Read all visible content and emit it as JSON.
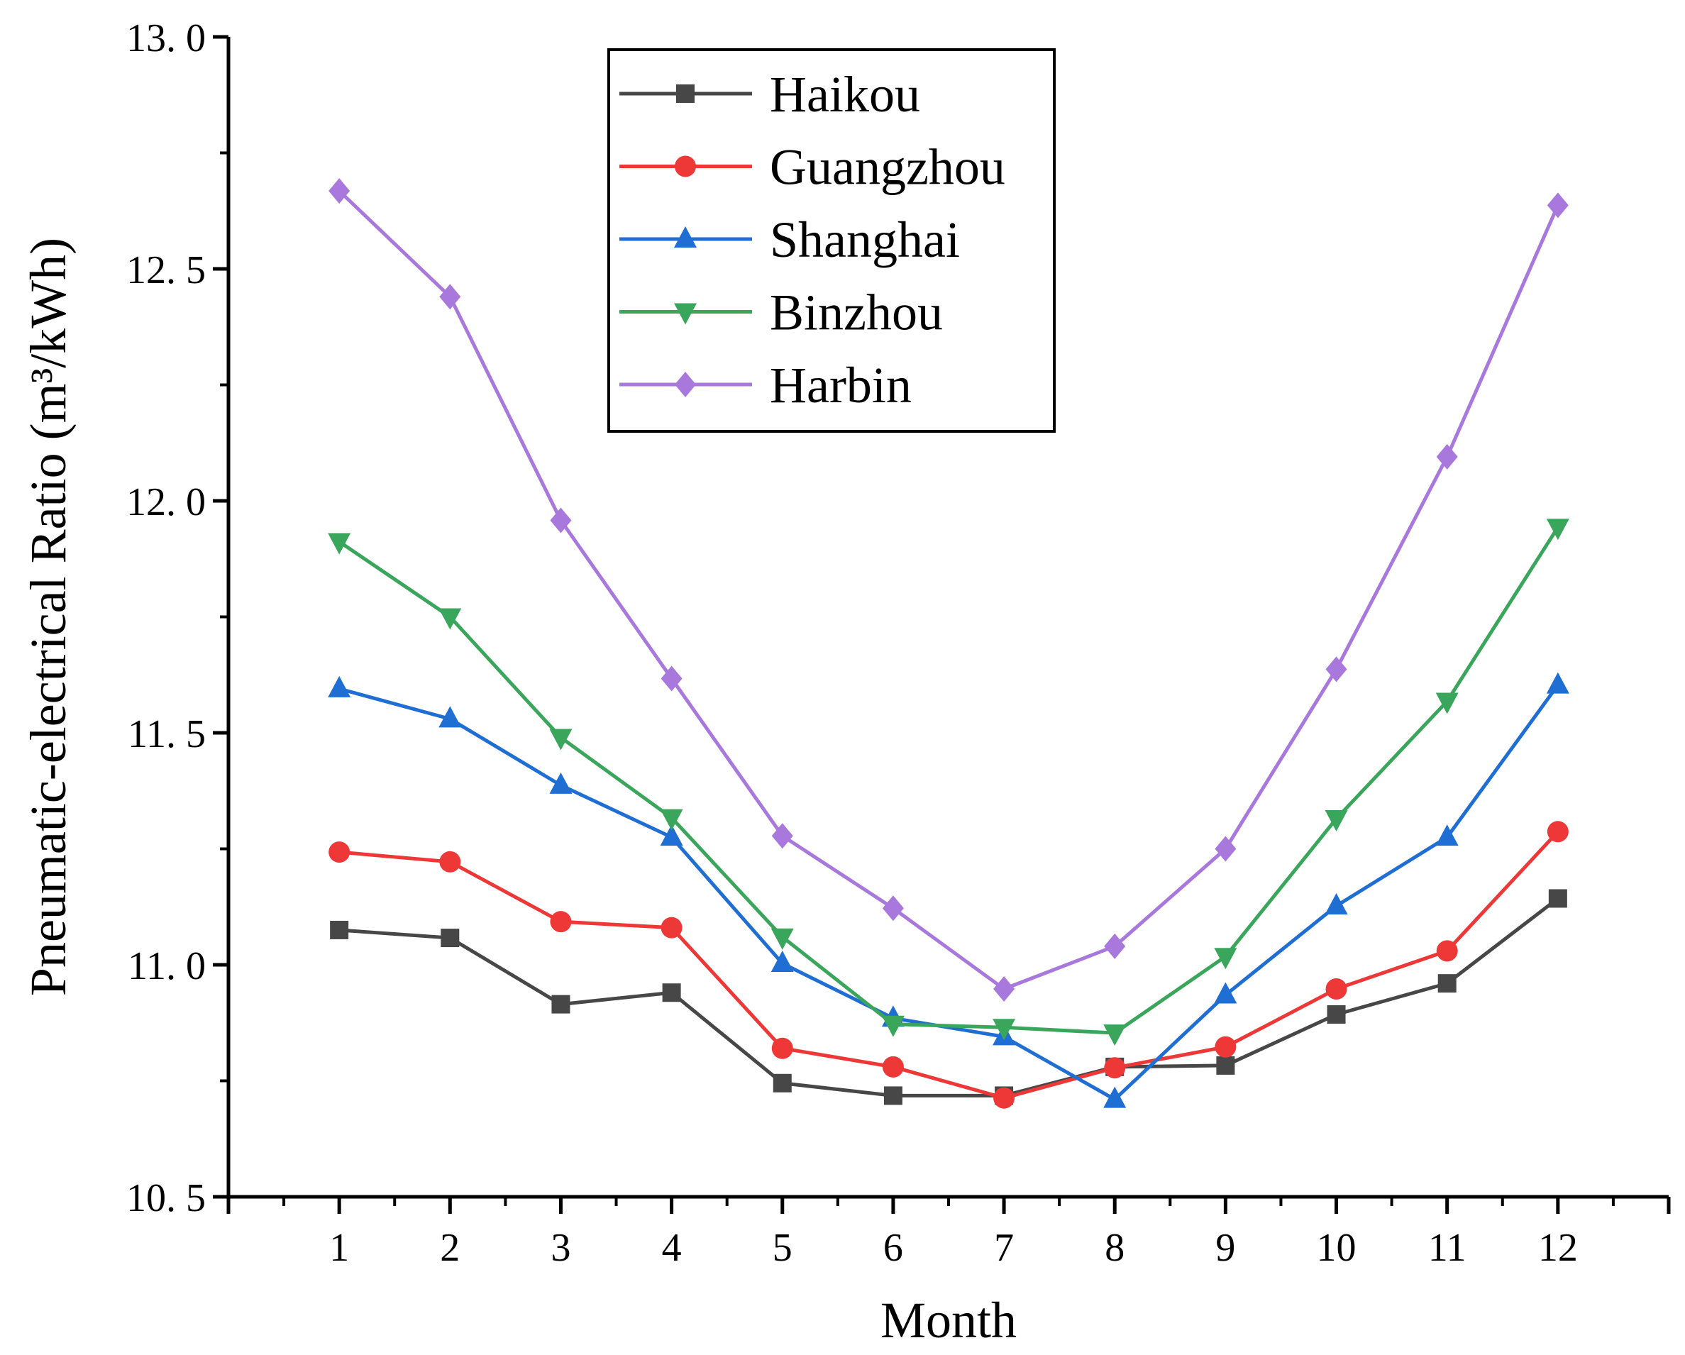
{
  "chart_data": {
    "type": "line",
    "title": "",
    "xlabel": "Month",
    "ylabel": "Pneumatic-electrical Ratio (m³/kWh)",
    "categories": [
      "1",
      "2",
      "3",
      "4",
      "5",
      "6",
      "7",
      "8",
      "9",
      "10",
      "11",
      "12"
    ],
    "x": [
      1,
      2,
      3,
      4,
      5,
      6,
      7,
      8,
      9,
      10,
      11,
      12
    ],
    "xlim": [
      0,
      13
    ],
    "ylim": [
      10.5,
      13.0
    ],
    "yticks": [
      10.5,
      11.0,
      11.5,
      12.0,
      12.5,
      13.0
    ],
    "ytick_labels": [
      "10. 5",
      "11. 0",
      "11. 5",
      "12. 0",
      "12. 5",
      "13. 0"
    ],
    "grid": false,
    "legend_position": "top-center",
    "series": [
      {
        "name": "Haikou",
        "color": "#474747",
        "marker": "square",
        "values": [
          11.075,
          11.058,
          10.915,
          10.94,
          10.745,
          10.718,
          10.718,
          10.78,
          10.783,
          10.893,
          10.96,
          11.143
        ]
      },
      {
        "name": "Guangzhou",
        "color": "#ee3737",
        "marker": "circle",
        "values": [
          11.243,
          11.222,
          11.093,
          11.08,
          10.82,
          10.78,
          10.713,
          10.778,
          10.823,
          10.948,
          11.03,
          11.287
        ]
      },
      {
        "name": "Shanghai",
        "color": "#1f6ed4",
        "marker": "triangle-up",
        "values": [
          11.595,
          11.53,
          11.387,
          11.275,
          11.003,
          10.885,
          10.845,
          10.71,
          10.935,
          11.127,
          11.275,
          11.603
        ]
      },
      {
        "name": "Binzhou",
        "color": "#3aa65c",
        "marker": "triangle-down",
        "values": [
          11.912,
          11.75,
          11.49,
          11.317,
          11.06,
          10.872,
          10.865,
          10.853,
          11.018,
          11.315,
          11.568,
          11.943
        ]
      },
      {
        "name": "Harbin",
        "color": "#a878dc",
        "marker": "diamond",
        "values": [
          12.668,
          12.44,
          11.958,
          11.617,
          11.278,
          11.122,
          10.948,
          11.04,
          11.25,
          11.637,
          12.095,
          12.637
        ]
      }
    ]
  }
}
